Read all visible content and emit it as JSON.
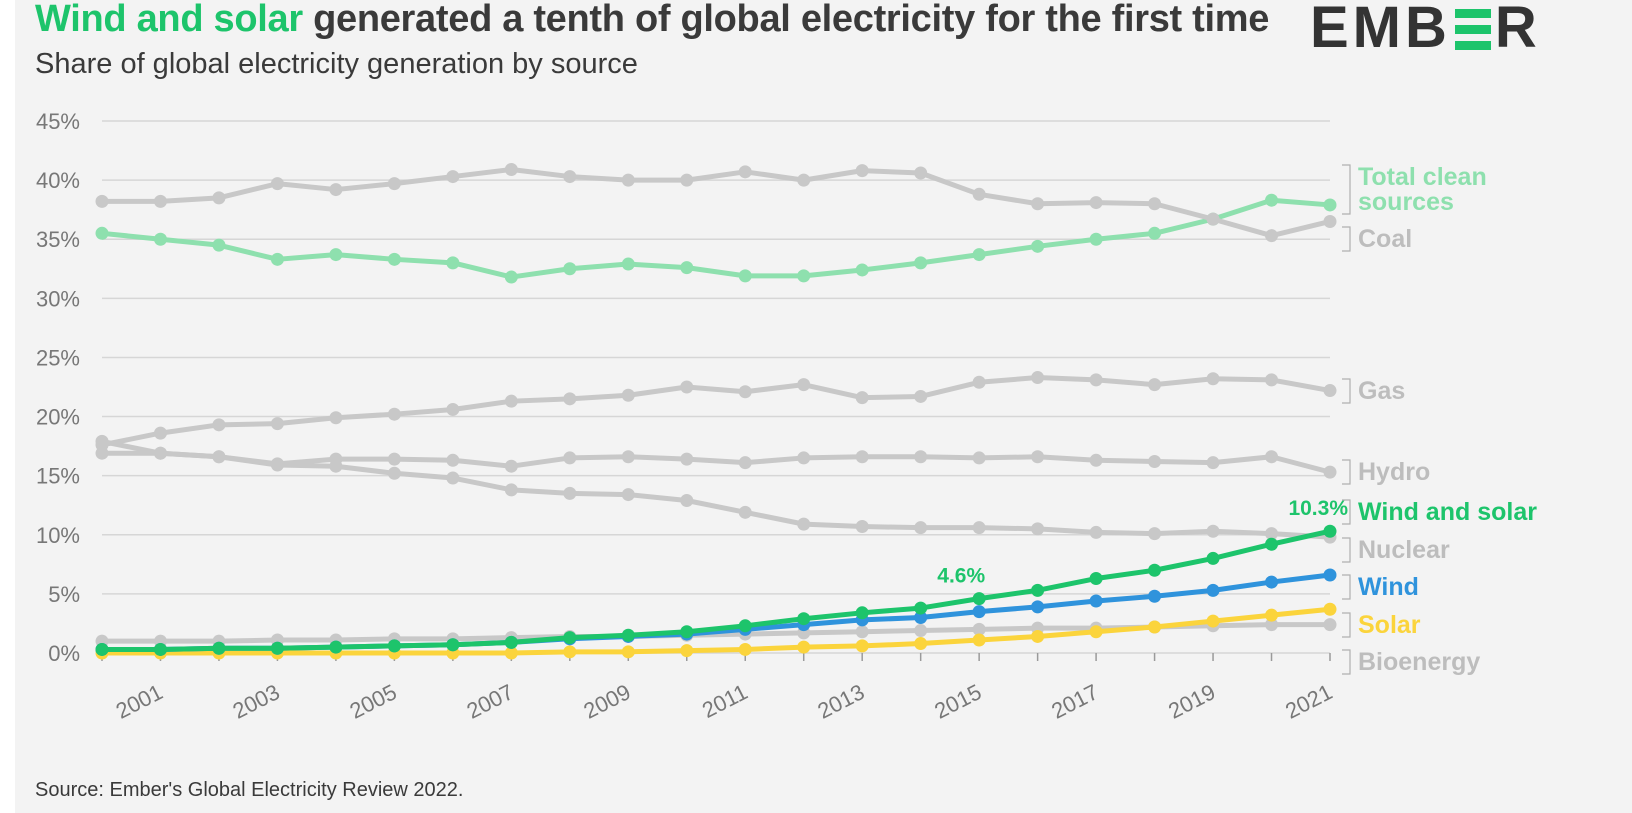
{
  "title": {
    "highlight": "Wind and solar",
    "rest": " generated a tenth of global electricity for the first time"
  },
  "subtitle": "Share of global electricity generation by source",
  "logo": {
    "left": "EMB",
    "right": "R"
  },
  "source": "Source: Ember's Global Electricity Review 2022.",
  "colors": {
    "clean": "#8ee0ae",
    "grey": "#c8c8c8",
    "label_grey": "#bdbdbd",
    "wind_solar": "#1dc46b",
    "wind": "#2f93dc",
    "solar": "#fbd43c",
    "grid": "#d6d6d6",
    "axis_text": "#777777"
  },
  "chart_data": {
    "type": "line",
    "x": [
      2000,
      2001,
      2002,
      2003,
      2004,
      2005,
      2006,
      2007,
      2008,
      2009,
      2010,
      2011,
      2012,
      2013,
      2014,
      2015,
      2016,
      2017,
      2018,
      2019,
      2020,
      2021
    ],
    "x_tick_labels": [
      "2001",
      "2003",
      "2005",
      "2007",
      "2009",
      "2011",
      "2013",
      "2015",
      "2017",
      "2019",
      "2021"
    ],
    "y_ticks": [
      "0%",
      "5%",
      "10%",
      "15%",
      "20%",
      "25%",
      "30%",
      "35%",
      "40%",
      "45%"
    ],
    "ylim": [
      0,
      45
    ],
    "y_unit": "%",
    "grid": true,
    "series": [
      {
        "name": "Total clean sources",
        "label_lines": [
          "Total clean",
          "sources"
        ],
        "color": "#8ee0ae",
        "values": [
          35.5,
          35.0,
          34.5,
          33.3,
          33.7,
          33.3,
          33.0,
          31.8,
          32.5,
          32.9,
          32.6,
          31.9,
          31.9,
          32.4,
          33.0,
          33.7,
          34.4,
          35.0,
          35.5,
          36.7,
          38.3,
          37.9
        ]
      },
      {
        "name": "Coal",
        "label_lines": [
          "Coal"
        ],
        "color": "#c8c8c8",
        "values": [
          38.2,
          38.2,
          38.5,
          39.7,
          39.2,
          39.7,
          40.3,
          40.9,
          40.3,
          40.0,
          40.0,
          40.7,
          40.0,
          40.8,
          40.6,
          38.8,
          38.0,
          38.1,
          38.0,
          36.7,
          35.3,
          36.5
        ]
      },
      {
        "name": "Gas",
        "label_lines": [
          "Gas"
        ],
        "color": "#c8c8c8",
        "values": [
          17.6,
          18.6,
          19.3,
          19.4,
          19.9,
          20.2,
          20.6,
          21.3,
          21.5,
          21.8,
          22.5,
          22.1,
          22.7,
          21.6,
          21.7,
          22.9,
          23.3,
          23.1,
          22.7,
          23.2,
          23.1,
          22.2
        ]
      },
      {
        "name": "Hydro",
        "label_lines": [
          "Hydro"
        ],
        "color": "#c8c8c8",
        "values": [
          16.9,
          16.9,
          16.6,
          16.0,
          16.4,
          16.4,
          16.3,
          15.8,
          16.5,
          16.6,
          16.4,
          16.1,
          16.5,
          16.6,
          16.6,
          16.5,
          16.6,
          16.3,
          16.2,
          16.1,
          16.6,
          15.3
        ]
      },
      {
        "name": "Nuclear",
        "label_lines": [
          "Nuclear"
        ],
        "color": "#c8c8c8",
        "values": [
          17.9,
          16.9,
          16.6,
          15.9,
          15.8,
          15.2,
          14.8,
          13.8,
          13.5,
          13.4,
          12.9,
          11.9,
          10.9,
          10.7,
          10.6,
          10.6,
          10.5,
          10.2,
          10.1,
          10.3,
          10.1,
          9.8
        ]
      },
      {
        "name": "Bioenergy",
        "label_lines": [
          "Bioenergy"
        ],
        "color": "#c8c8c8",
        "values": [
          1.0,
          1.0,
          1.0,
          1.1,
          1.1,
          1.2,
          1.2,
          1.3,
          1.4,
          1.4,
          1.5,
          1.6,
          1.7,
          1.8,
          1.9,
          2.0,
          2.1,
          2.1,
          2.2,
          2.3,
          2.4,
          2.4
        ]
      },
      {
        "name": "Solar",
        "label_lines": [
          "Solar"
        ],
        "color": "#fbd43c",
        "values": [
          0.0,
          0.0,
          0.0,
          0.0,
          0.0,
          0.0,
          0.0,
          0.0,
          0.1,
          0.1,
          0.2,
          0.3,
          0.5,
          0.6,
          0.8,
          1.1,
          1.4,
          1.8,
          2.2,
          2.7,
          3.2,
          3.7
        ]
      },
      {
        "name": "Wind",
        "label_lines": [
          "Wind"
        ],
        "color": "#2f93dc",
        "values": [
          0.3,
          0.3,
          0.4,
          0.4,
          0.5,
          0.6,
          0.7,
          0.9,
          1.2,
          1.4,
          1.6,
          2.0,
          2.4,
          2.8,
          3.0,
          3.5,
          3.9,
          4.4,
          4.8,
          5.3,
          6.0,
          6.6
        ]
      },
      {
        "name": "Wind and solar",
        "label_lines": [
          "Wind and solar"
        ],
        "color": "#1dc46b",
        "values": [
          0.3,
          0.3,
          0.4,
          0.4,
          0.5,
          0.6,
          0.7,
          0.9,
          1.3,
          1.5,
          1.8,
          2.3,
          2.9,
          3.4,
          3.8,
          4.6,
          5.3,
          6.3,
          7.0,
          8.0,
          9.2,
          10.3
        ]
      }
    ],
    "annotations": [
      {
        "series": "Wind and solar",
        "x": 2015,
        "text": "4.6%"
      },
      {
        "series": "Wind and solar",
        "x": 2021,
        "text": "10.3%"
      }
    ]
  }
}
